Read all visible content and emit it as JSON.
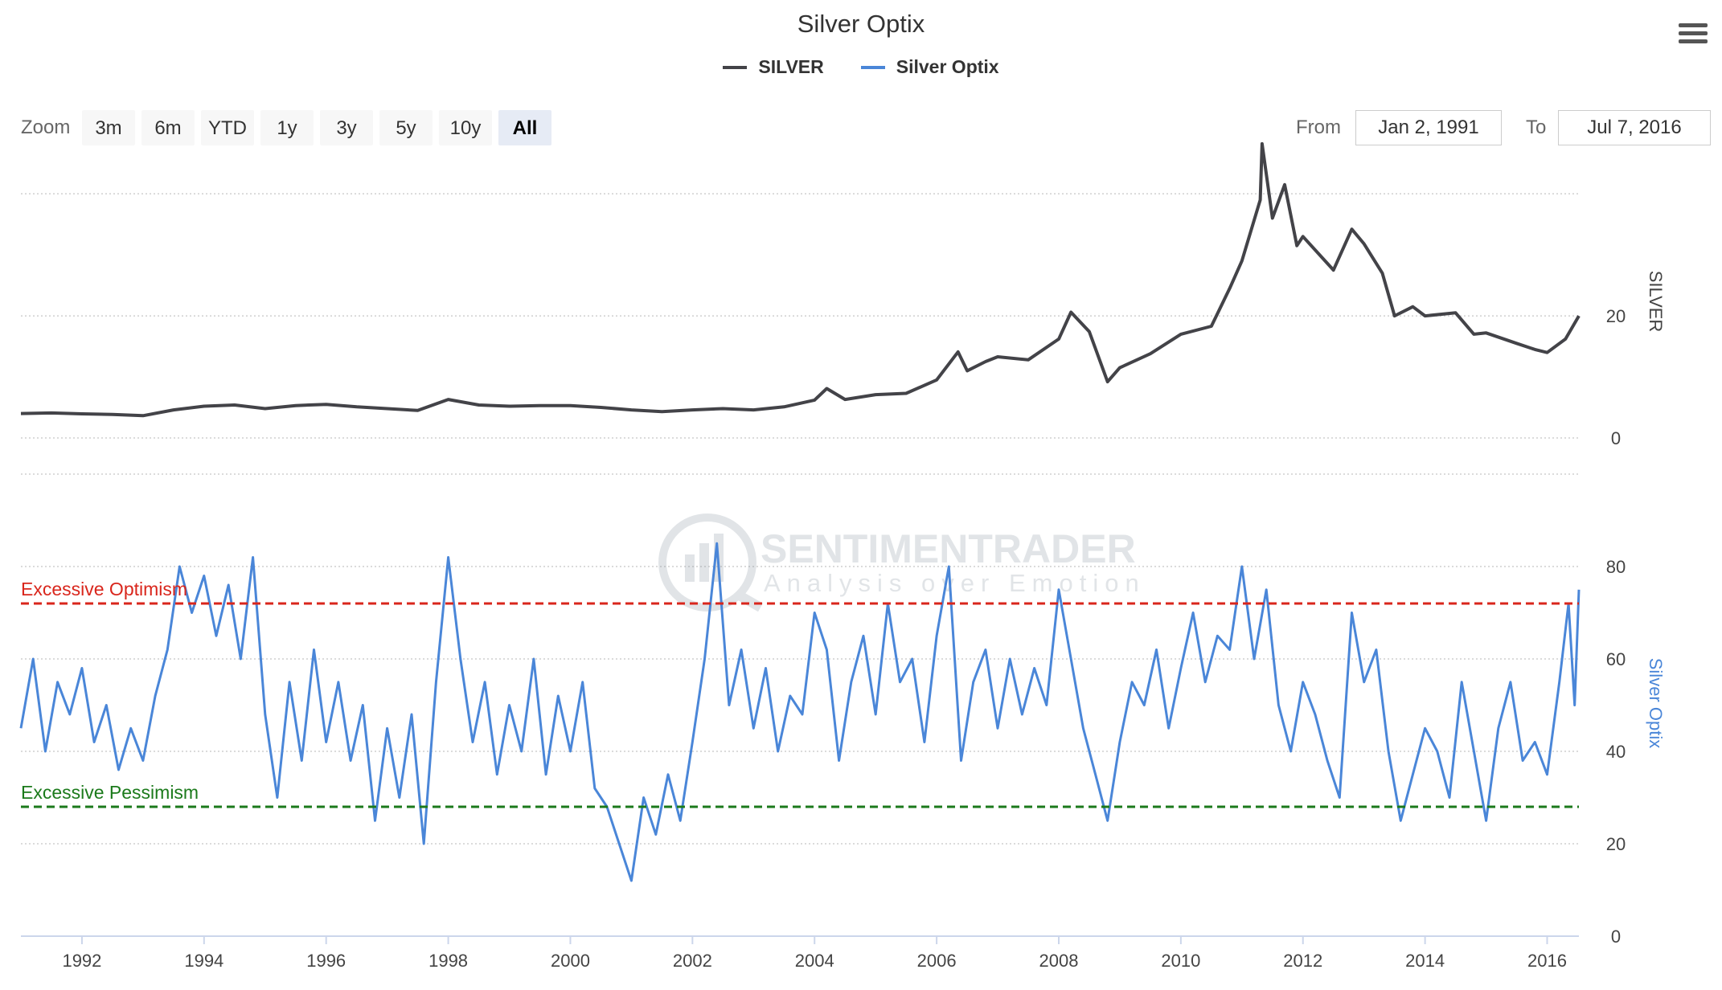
{
  "chart": {
    "title": "Silver Optix",
    "legend": [
      {
        "label": "SILVER",
        "color": "#434348"
      },
      {
        "label": "Silver Optix",
        "color": "#4a86d8"
      }
    ],
    "range_selector": {
      "zoom_label": "Zoom",
      "buttons": [
        "3m",
        "6m",
        "YTD",
        "1y",
        "3y",
        "5y",
        "10y",
        "All"
      ],
      "selected": "All",
      "from_label": "From",
      "from_value": "Jan 2, 1991",
      "to_label": "To",
      "to_value": "Jul 7, 2016"
    },
    "watermark": {
      "line1": "SENTIMENTRADER",
      "line2": "Analysis over Emotion"
    },
    "menu_icon": "hamburger-menu-icon"
  },
  "chart_data": [
    {
      "type": "line",
      "name": "SILVER",
      "ylabel": "SILVER",
      "color": "#434348",
      "y_ticks": [
        0,
        20
      ],
      "ylim": [
        0,
        52
      ],
      "xlim": [
        1991.0,
        2016.52
      ],
      "grid": true,
      "points": [
        [
          1991.0,
          4.0
        ],
        [
          1991.5,
          4.1
        ],
        [
          1992.0,
          3.95
        ],
        [
          1992.5,
          3.85
        ],
        [
          1993.0,
          3.65
        ],
        [
          1993.5,
          4.6
        ],
        [
          1994.0,
          5.2
        ],
        [
          1994.5,
          5.4
        ],
        [
          1995.0,
          4.8
        ],
        [
          1995.5,
          5.3
        ],
        [
          1996.0,
          5.5
        ],
        [
          1996.5,
          5.1
        ],
        [
          1997.0,
          4.8
        ],
        [
          1997.5,
          4.5
        ],
        [
          1998.0,
          6.3
        ],
        [
          1998.5,
          5.4
        ],
        [
          1999.0,
          5.2
        ],
        [
          1999.5,
          5.3
        ],
        [
          2000.0,
          5.3
        ],
        [
          2000.5,
          5.0
        ],
        [
          2001.0,
          4.6
        ],
        [
          2001.5,
          4.3
        ],
        [
          2002.0,
          4.6
        ],
        [
          2002.5,
          4.8
        ],
        [
          2003.0,
          4.6
        ],
        [
          2003.5,
          5.1
        ],
        [
          2004.0,
          6.2
        ],
        [
          2004.2,
          8.1
        ],
        [
          2004.5,
          6.3
        ],
        [
          2005.0,
          7.1
        ],
        [
          2005.5,
          7.3
        ],
        [
          2006.0,
          9.5
        ],
        [
          2006.35,
          14.1
        ],
        [
          2006.5,
          11.0
        ],
        [
          2006.8,
          12.5
        ],
        [
          2007.0,
          13.3
        ],
        [
          2007.5,
          12.8
        ],
        [
          2008.0,
          16.2
        ],
        [
          2008.2,
          20.6
        ],
        [
          2008.5,
          17.4
        ],
        [
          2008.8,
          9.2
        ],
        [
          2009.0,
          11.5
        ],
        [
          2009.5,
          13.8
        ],
        [
          2010.0,
          17.0
        ],
        [
          2010.5,
          18.3
        ],
        [
          2010.8,
          24.5
        ],
        [
          2011.0,
          29.0
        ],
        [
          2011.3,
          39.0
        ],
        [
          2011.33,
          48.2
        ],
        [
          2011.5,
          36.0
        ],
        [
          2011.7,
          41.5
        ],
        [
          2011.9,
          31.5
        ],
        [
          2012.0,
          33.0
        ],
        [
          2012.5,
          27.5
        ],
        [
          2012.8,
          34.2
        ],
        [
          2013.0,
          31.8
        ],
        [
          2013.3,
          27.0
        ],
        [
          2013.5,
          20.0
        ],
        [
          2013.8,
          21.5
        ],
        [
          2014.0,
          20.0
        ],
        [
          2014.5,
          20.5
        ],
        [
          2014.8,
          17.0
        ],
        [
          2015.0,
          17.2
        ],
        [
          2015.5,
          15.5
        ],
        [
          2015.8,
          14.5
        ],
        [
          2016.0,
          14.0
        ],
        [
          2016.3,
          16.2
        ],
        [
          2016.52,
          20.0
        ]
      ]
    },
    {
      "type": "line",
      "name": "Silver Optix",
      "ylabel": "Silver Optix",
      "color": "#4a86d8",
      "y_ticks": [
        0,
        20,
        40,
        60,
        80
      ],
      "ylim": [
        0,
        100
      ],
      "xlim": [
        1991.0,
        2016.52
      ],
      "grid": true,
      "x_ticks": [
        1992,
        1994,
        1996,
        1998,
        2000,
        2002,
        2004,
        2006,
        2008,
        2010,
        2012,
        2014,
        2016
      ],
      "annotations": [
        {
          "label": "Excessive Optimism",
          "y": 72,
          "color": "#d9261c",
          "style": "dashed"
        },
        {
          "label": "Excessive Pessimism",
          "y": 28,
          "color": "#1b7a1b",
          "style": "dashed"
        }
      ],
      "points": [
        [
          1991.0,
          45
        ],
        [
          1991.2,
          60
        ],
        [
          1991.4,
          40
        ],
        [
          1991.6,
          55
        ],
        [
          1991.8,
          48
        ],
        [
          1992.0,
          58
        ],
        [
          1992.2,
          42
        ],
        [
          1992.4,
          50
        ],
        [
          1992.6,
          36
        ],
        [
          1992.8,
          45
        ],
        [
          1993.0,
          38
        ],
        [
          1993.2,
          52
        ],
        [
          1993.4,
          62
        ],
        [
          1993.6,
          80
        ],
        [
          1993.8,
          70
        ],
        [
          1994.0,
          78
        ],
        [
          1994.2,
          65
        ],
        [
          1994.4,
          76
        ],
        [
          1994.6,
          60
        ],
        [
          1994.8,
          82
        ],
        [
          1995.0,
          48
        ],
        [
          1995.2,
          30
        ],
        [
          1995.4,
          55
        ],
        [
          1995.6,
          38
        ],
        [
          1995.8,
          62
        ],
        [
          1996.0,
          42
        ],
        [
          1996.2,
          55
        ],
        [
          1996.4,
          38
        ],
        [
          1996.6,
          50
        ],
        [
          1996.8,
          25
        ],
        [
          1997.0,
          45
        ],
        [
          1997.2,
          30
        ],
        [
          1997.4,
          48
        ],
        [
          1997.6,
          20
        ],
        [
          1997.8,
          55
        ],
        [
          1998.0,
          82
        ],
        [
          1998.2,
          60
        ],
        [
          1998.4,
          42
        ],
        [
          1998.6,
          55
        ],
        [
          1998.8,
          35
        ],
        [
          1999.0,
          50
        ],
        [
          1999.2,
          40
        ],
        [
          1999.4,
          60
        ],
        [
          1999.6,
          35
        ],
        [
          1999.8,
          52
        ],
        [
          2000.0,
          40
        ],
        [
          2000.2,
          55
        ],
        [
          2000.4,
          32
        ],
        [
          2000.6,
          28
        ],
        [
          2000.8,
          20
        ],
        [
          2001.0,
          12
        ],
        [
          2001.2,
          30
        ],
        [
          2001.4,
          22
        ],
        [
          2001.6,
          35
        ],
        [
          2001.8,
          25
        ],
        [
          2002.0,
          42
        ],
        [
          2002.2,
          60
        ],
        [
          2002.4,
          85
        ],
        [
          2002.6,
          50
        ],
        [
          2002.8,
          62
        ],
        [
          2003.0,
          45
        ],
        [
          2003.2,
          58
        ],
        [
          2003.4,
          40
        ],
        [
          2003.6,
          52
        ],
        [
          2003.8,
          48
        ],
        [
          2004.0,
          70
        ],
        [
          2004.2,
          62
        ],
        [
          2004.4,
          38
        ],
        [
          2004.6,
          55
        ],
        [
          2004.8,
          65
        ],
        [
          2005.0,
          48
        ],
        [
          2005.2,
          72
        ],
        [
          2005.4,
          55
        ],
        [
          2005.6,
          60
        ],
        [
          2005.8,
          42
        ],
        [
          2006.0,
          65
        ],
        [
          2006.2,
          80
        ],
        [
          2006.4,
          38
        ],
        [
          2006.6,
          55
        ],
        [
          2006.8,
          62
        ],
        [
          2007.0,
          45
        ],
        [
          2007.2,
          60
        ],
        [
          2007.4,
          48
        ],
        [
          2007.6,
          58
        ],
        [
          2007.8,
          50
        ],
        [
          2008.0,
          75
        ],
        [
          2008.2,
          60
        ],
        [
          2008.4,
          45
        ],
        [
          2008.6,
          35
        ],
        [
          2008.8,
          25
        ],
        [
          2009.0,
          42
        ],
        [
          2009.2,
          55
        ],
        [
          2009.4,
          50
        ],
        [
          2009.6,
          62
        ],
        [
          2009.8,
          45
        ],
        [
          2010.0,
          58
        ],
        [
          2010.2,
          70
        ],
        [
          2010.4,
          55
        ],
        [
          2010.6,
          65
        ],
        [
          2010.8,
          62
        ],
        [
          2011.0,
          80
        ],
        [
          2011.2,
          60
        ],
        [
          2011.4,
          75
        ],
        [
          2011.6,
          50
        ],
        [
          2011.8,
          40
        ],
        [
          2012.0,
          55
        ],
        [
          2012.2,
          48
        ],
        [
          2012.4,
          38
        ],
        [
          2012.6,
          30
        ],
        [
          2012.8,
          70
        ],
        [
          2013.0,
          55
        ],
        [
          2013.2,
          62
        ],
        [
          2013.4,
          40
        ],
        [
          2013.6,
          25
        ],
        [
          2013.8,
          35
        ],
        [
          2014.0,
          45
        ],
        [
          2014.2,
          40
        ],
        [
          2014.4,
          30
        ],
        [
          2014.6,
          55
        ],
        [
          2014.8,
          40
        ],
        [
          2015.0,
          25
        ],
        [
          2015.2,
          45
        ],
        [
          2015.4,
          55
        ],
        [
          2015.6,
          38
        ],
        [
          2015.8,
          42
        ],
        [
          2016.0,
          35
        ],
        [
          2016.2,
          55
        ],
        [
          2016.35,
          72
        ],
        [
          2016.45,
          50
        ],
        [
          2016.52,
          75
        ]
      ]
    }
  ]
}
